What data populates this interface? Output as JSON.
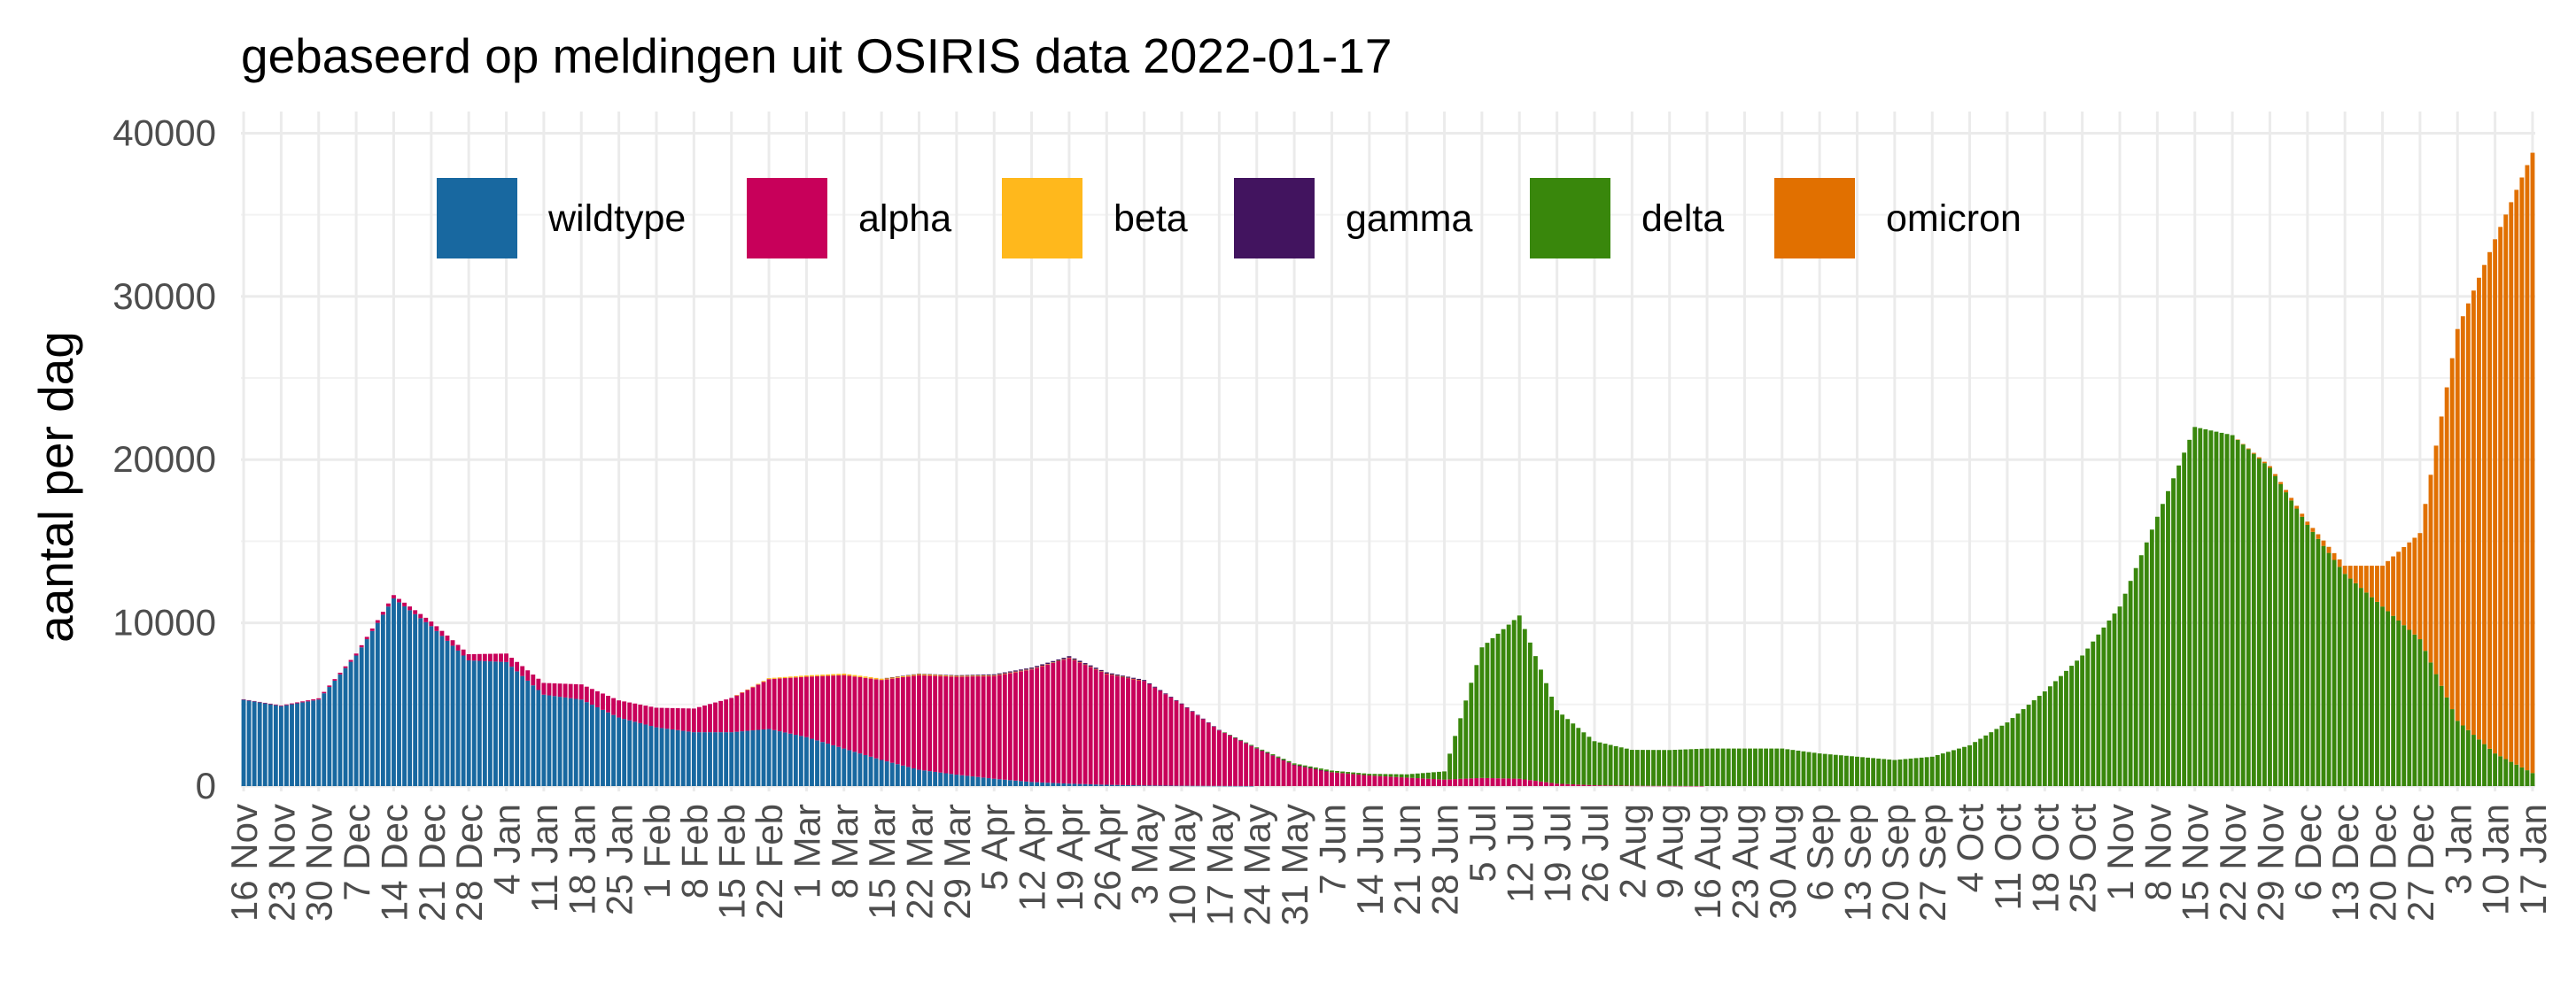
{
  "chart_data": {
    "type": "bar",
    "stacked": true,
    "title": "gebaseerd op meldingen uit OSIRIS data 2022-01-17",
    "xlabel": "",
    "ylabel": "aantal per dag",
    "ylim": [
      0,
      41000
    ],
    "y_ticks": [
      "0",
      "10000",
      "20000",
      "30000",
      "40000"
    ],
    "x_start_label": "16 Nov 2020",
    "x_tick_labels": [
      "16 Nov",
      "23 Nov",
      "30 Nov",
      "7 Dec",
      "14 Dec",
      "21 Dec",
      "28 Dec",
      "4 Jan",
      "11 Jan",
      "18 Jan",
      "25 Jan",
      "1 Feb",
      "8 Feb",
      "15 Feb",
      "22 Feb",
      "1 Mar",
      "8 Mar",
      "15 Mar",
      "22 Mar",
      "29 Mar",
      "5 Apr",
      "12 Apr",
      "19 Apr",
      "26 Apr",
      "3 May",
      "10 May",
      "17 May",
      "24 May",
      "31 May",
      "7 Jun",
      "14 Jun",
      "21 Jun",
      "28 Jun",
      "5 Jul",
      "12 Jul",
      "19 Jul",
      "26 Jul",
      "2 Aug",
      "9 Aug",
      "16 Aug",
      "23 Aug",
      "30 Aug",
      "6 Sep",
      "13 Sep",
      "20 Sep",
      "27 Sep",
      "4 Oct",
      "11 Oct",
      "18 Oct",
      "25 Oct",
      "1 Nov",
      "8 Nov",
      "15 Nov",
      "22 Nov",
      "29 Nov",
      "6 Dec",
      "13 Dec",
      "20 Dec",
      "27 Dec",
      "3 Jan",
      "10 Jan",
      "17 Jan"
    ],
    "grid": true,
    "legend_position": "top",
    "series": [
      {
        "name": "wildtype",
        "color": "#1868a0",
        "weekly_values": [
          5300,
          4900,
          5300,
          8000,
          11500,
          9800,
          7700,
          7600,
          5600,
          5300,
          4200,
          3600,
          3300,
          3300,
          3500,
          3000,
          2300,
          1600,
          1000,
          700,
          450,
          250,
          150,
          80,
          40,
          20,
          10,
          0,
          0,
          0,
          0,
          0,
          0,
          0,
          0,
          0,
          0,
          0,
          0,
          0,
          0,
          0,
          0,
          0,
          0,
          0,
          0,
          0,
          0,
          0,
          0,
          0,
          0,
          0,
          0,
          0,
          0,
          0,
          0,
          0,
          0,
          0
        ]
      },
      {
        "name": "alpha",
        "color": "#c8005a",
        "weekly_values": [
          20,
          40,
          80,
          120,
          200,
          280,
          380,
          520,
          720,
          930,
          1050,
          1200,
          1450,
          2100,
          3050,
          3700,
          4500,
          4900,
          5800,
          6000,
          6300,
          6900,
          7700,
          6800,
          6400,
          5000,
          3400,
          2300,
          1300,
          850,
          650,
          520,
          400,
          500,
          450,
          150,
          50,
          20,
          10,
          0,
          0,
          0,
          0,
          0,
          0,
          0,
          0,
          0,
          0,
          0,
          0,
          0,
          0,
          0,
          0,
          0,
          0,
          0,
          0,
          0,
          0,
          0
        ]
      },
      {
        "name": "beta",
        "color": "#ffb81c",
        "weekly_values": [
          0,
          0,
          0,
          0,
          0,
          0,
          0,
          0,
          0,
          0,
          0,
          0,
          0,
          0,
          60,
          80,
          90,
          80,
          70,
          50,
          40,
          30,
          20,
          10,
          0,
          0,
          0,
          0,
          0,
          0,
          0,
          0,
          0,
          0,
          0,
          0,
          0,
          0,
          0,
          0,
          0,
          0,
          0,
          0,
          0,
          0,
          0,
          0,
          0,
          0,
          0,
          0,
          0,
          0,
          0,
          0,
          0,
          0,
          0,
          0,
          0,
          0
        ]
      },
      {
        "name": "gamma",
        "color": "#42145f",
        "weekly_values": [
          0,
          0,
          0,
          0,
          0,
          0,
          0,
          0,
          0,
          0,
          0,
          0,
          0,
          0,
          0,
          0,
          0,
          0,
          20,
          40,
          60,
          80,
          90,
          80,
          60,
          40,
          30,
          20,
          10,
          0,
          0,
          0,
          0,
          0,
          0,
          0,
          0,
          0,
          0,
          0,
          0,
          0,
          0,
          0,
          0,
          0,
          0,
          0,
          0,
          0,
          0,
          0,
          0,
          0,
          0,
          0,
          0,
          0,
          0,
          0,
          0,
          0
        ]
      },
      {
        "name": "delta",
        "color": "#39870c",
        "weekly_values": [
          0,
          0,
          0,
          0,
          0,
          0,
          0,
          0,
          0,
          0,
          0,
          0,
          0,
          0,
          0,
          0,
          0,
          0,
          0,
          0,
          0,
          0,
          0,
          0,
          0,
          0,
          0,
          50,
          80,
          100,
          100,
          200,
          500,
          8000,
          10000,
          4500,
          2700,
          2200,
          2200,
          2300,
          2300,
          2300,
          2000,
          1800,
          1600,
          1800,
          2500,
          3900,
          5800,
          8000,
          11000,
          16500,
          22000,
          21500,
          19500,
          16000,
          13000,
          11000,
          9000,
          4000,
          2000,
          800
        ]
      },
      {
        "name": "omicron",
        "color": "#e17000",
        "weekly_values": [
          0,
          0,
          0,
          0,
          0,
          0,
          0,
          0,
          0,
          0,
          0,
          0,
          0,
          0,
          0,
          0,
          0,
          0,
          0,
          0,
          0,
          0,
          0,
          0,
          0,
          0,
          0,
          0,
          0,
          0,
          0,
          0,
          0,
          0,
          0,
          0,
          0,
          0,
          0,
          0,
          0,
          0,
          0,
          0,
          0,
          0,
          0,
          0,
          0,
          0,
          0,
          0,
          0,
          0,
          100,
          200,
          500,
          2500,
          6500,
          24000,
          31500,
          38000
        ]
      }
    ]
  }
}
